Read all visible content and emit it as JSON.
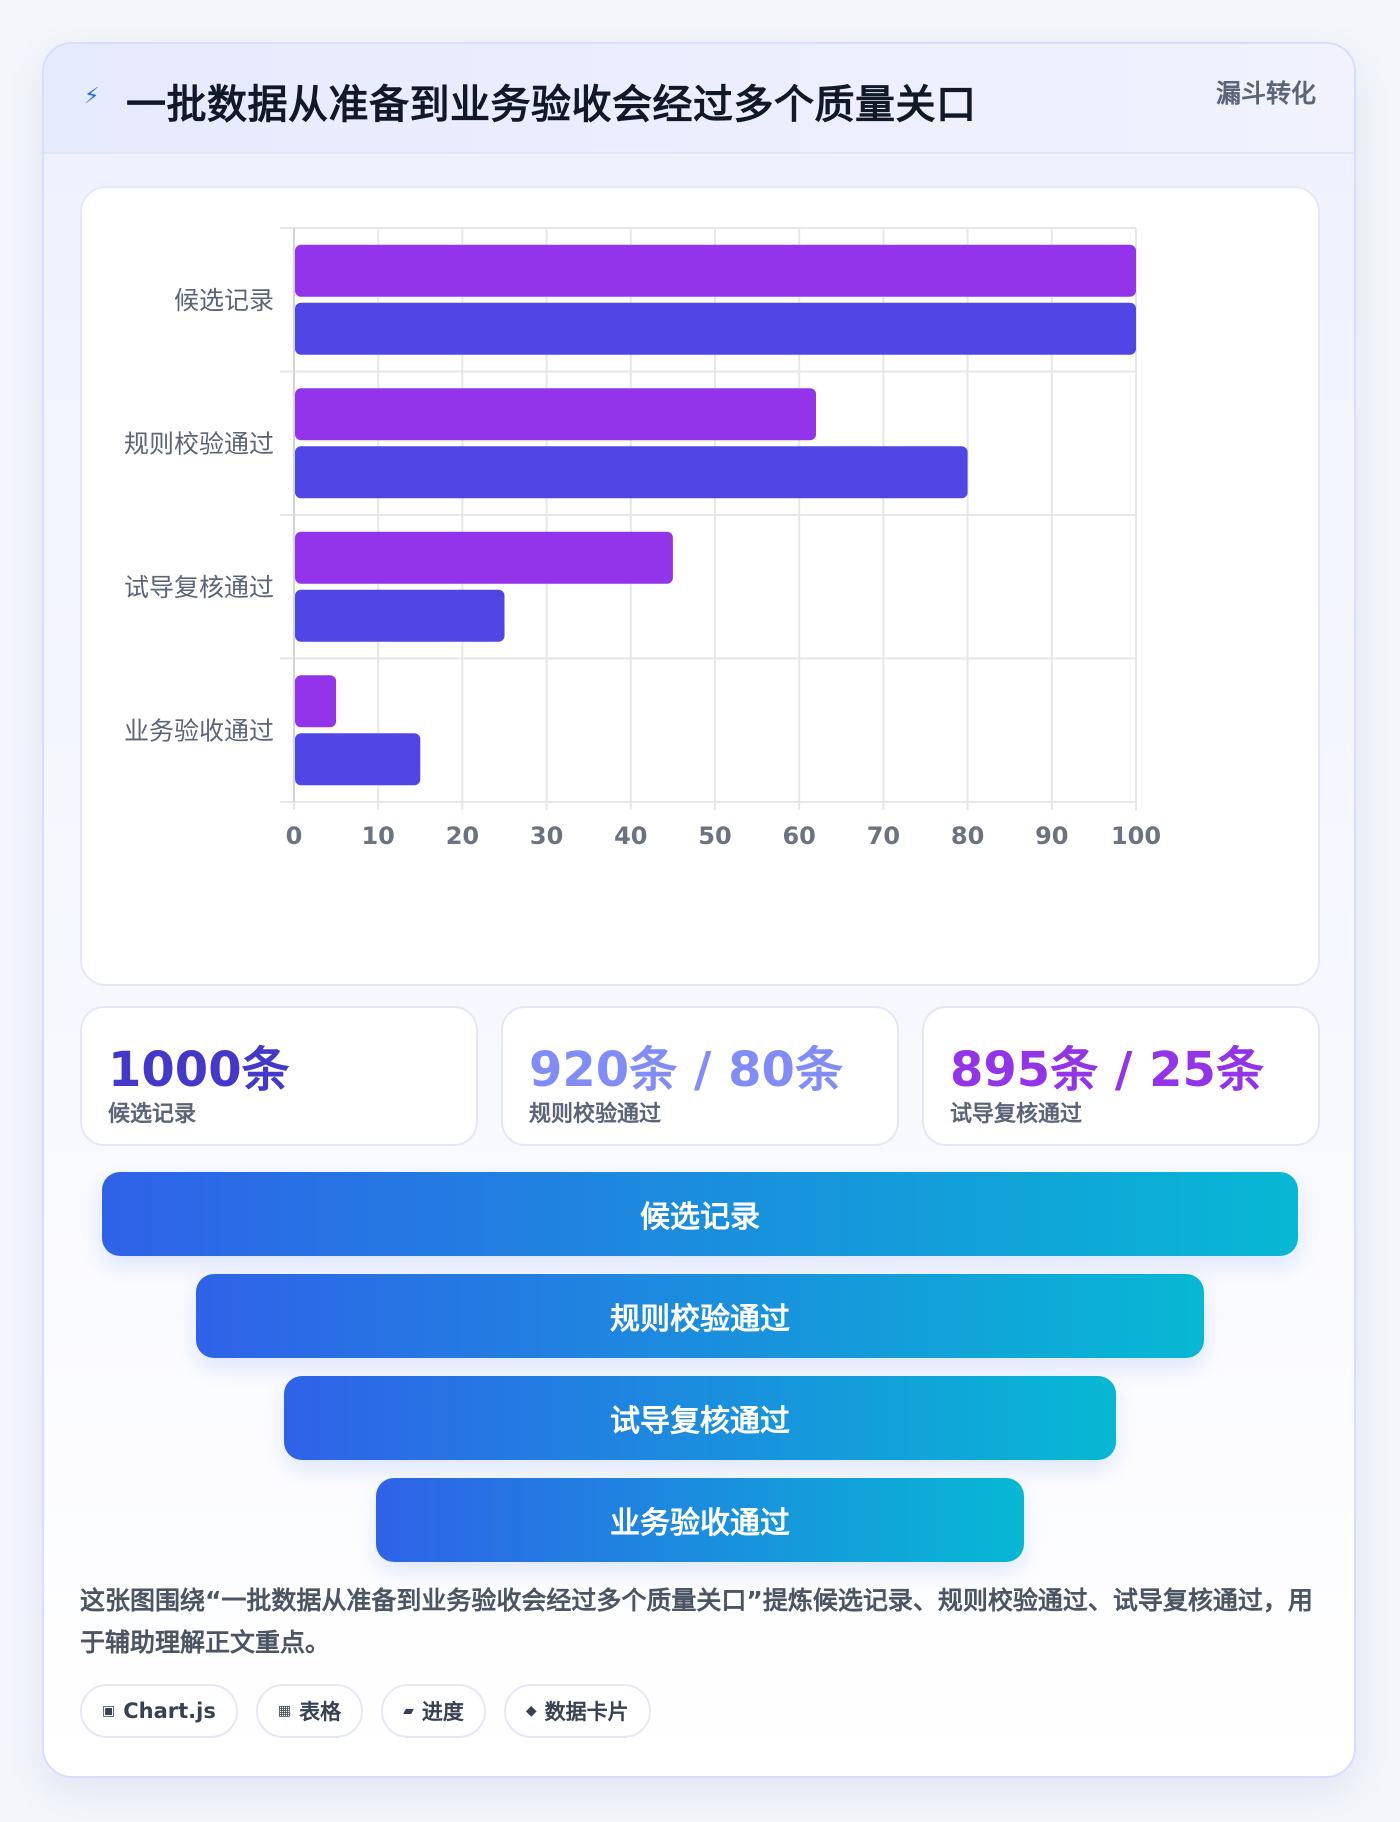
{
  "header": {
    "icon": "lightning-icon",
    "title": "一批数据从准备到业务验收会经过多个质量关口",
    "badge": "漏斗转化"
  },
  "chart_data": {
    "type": "bar",
    "orientation": "horizontal",
    "categories": [
      "候选记录",
      "规则校验通过",
      "试导复核通过",
      "业务验收通过"
    ],
    "series": [
      {
        "color": "#9333ea",
        "values": [
          100,
          62,
          45,
          5
        ]
      },
      {
        "color": "#4f46e5",
        "values": [
          100,
          80,
          25,
          15
        ]
      }
    ],
    "xlim": [
      0,
      100
    ],
    "xticks": [
      0,
      10,
      20,
      30,
      40,
      50,
      60,
      70,
      80,
      90,
      100
    ],
    "grid": true,
    "legend": "none"
  },
  "stats": [
    {
      "value": "1000条",
      "label": "候选记录",
      "color": "#4338ca"
    },
    {
      "value": "920条 / 80条",
      "label": "规则校验通过",
      "color": "#818cf8"
    },
    {
      "value": "895条 / 25条",
      "label": "试导复核通过",
      "color": "#9333ea"
    }
  ],
  "funnel": [
    {
      "label": "候选记录"
    },
    {
      "label": "规则校验通过"
    },
    {
      "label": "试导复核通过"
    },
    {
      "label": "业务验收通过"
    }
  ],
  "summary": "这张图围绕“一批数据从准备到业务验收会经过多个质量关口”提炼候选记录、规则校验通过、试导复核通过，用于辅助理解正文重点。",
  "tags": [
    {
      "icon": "chart-box-icon",
      "glyph": "▣",
      "label": "Chart.js"
    },
    {
      "icon": "table-icon",
      "glyph": "▦",
      "label": "表格"
    },
    {
      "icon": "progress-icon",
      "glyph": "▰",
      "label": "进度"
    },
    {
      "icon": "diamond-icon",
      "glyph": "◆",
      "label": "数据卡片"
    }
  ]
}
